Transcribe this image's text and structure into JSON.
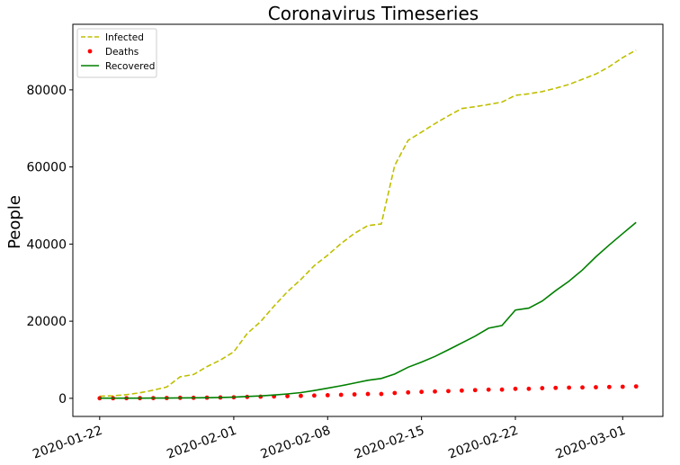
{
  "chart_data": {
    "type": "line",
    "title": "Coronavirus Timeseries",
    "xlabel": "",
    "ylabel": "People",
    "x_type": "date",
    "xlim": [
      "2020-01-20",
      "2020-03-04"
    ],
    "ylim": [
      -4700,
      97000
    ],
    "grid": false,
    "legend_position": "top-left",
    "x_ticks": [
      "2020-01-22",
      "2020-02-01",
      "2020-02-08",
      "2020-02-15",
      "2020-02-22",
      "2020-03-01"
    ],
    "y_ticks": [
      0,
      20000,
      40000,
      60000,
      80000
    ],
    "x": [
      "2020-01-22",
      "2020-01-23",
      "2020-01-24",
      "2020-01-25",
      "2020-01-26",
      "2020-01-27",
      "2020-01-28",
      "2020-01-29",
      "2020-01-30",
      "2020-01-31",
      "2020-02-01",
      "2020-02-02",
      "2020-02-03",
      "2020-02-04",
      "2020-02-05",
      "2020-02-06",
      "2020-02-07",
      "2020-02-08",
      "2020-02-09",
      "2020-02-10",
      "2020-02-11",
      "2020-02-12",
      "2020-02-13",
      "2020-02-14",
      "2020-02-15",
      "2020-02-16",
      "2020-02-17",
      "2020-02-18",
      "2020-02-19",
      "2020-02-20",
      "2020-02-21",
      "2020-02-22",
      "2020-02-23",
      "2020-02-24",
      "2020-02-25",
      "2020-02-26",
      "2020-02-27",
      "2020-02-28",
      "2020-02-29",
      "2020-03-01",
      "2020-03-02"
    ],
    "series": [
      {
        "name": "Infected",
        "style": "dashed-line",
        "color": "#bfbf00",
        "values": [
          555,
          654,
          941,
          1434,
          2118,
          2927,
          5578,
          6166,
          8234,
          9927,
          12038,
          16787,
          19881,
          23892,
          27635,
          30817,
          34391,
          37120,
          40150,
          42762,
          44802,
          45221,
          60368,
          66885,
          69030,
          71224,
          73258,
          75136,
          75639,
          76197,
          76819,
          78572,
          78958,
          79561,
          80406,
          81388,
          82746,
          84112,
          86011,
          88369,
          90306
        ]
      },
      {
        "name": "Deaths",
        "style": "dots",
        "color": "#ff0000",
        "values": [
          17,
          18,
          26,
          42,
          56,
          82,
          131,
          133,
          171,
          213,
          259,
          362,
          426,
          492,
          564,
          634,
          719,
          806,
          906,
          1013,
          1113,
          1118,
          1371,
          1523,
          1666,
          1770,
          1868,
          2007,
          2122,
          2247,
          2251,
          2458,
          2469,
          2629,
          2708,
          2770,
          2814,
          2872,
          2941,
          2996,
          3085
        ]
      },
      {
        "name": "Recovered",
        "style": "solid-line",
        "color": "#008000",
        "values": [
          28,
          30,
          36,
          39,
          52,
          61,
          107,
          126,
          143,
          222,
          284,
          472,
          623,
          852,
          1124,
          1487,
          2011,
          2616,
          3244,
          3946,
          4683,
          5150,
          6295,
          8058,
          9395,
          10865,
          12583,
          14352,
          16121,
          18177,
          18890,
          22886,
          23394,
          25227,
          27905,
          30384,
          33277,
          36711,
          39782,
          42716,
          45602
        ]
      }
    ]
  }
}
